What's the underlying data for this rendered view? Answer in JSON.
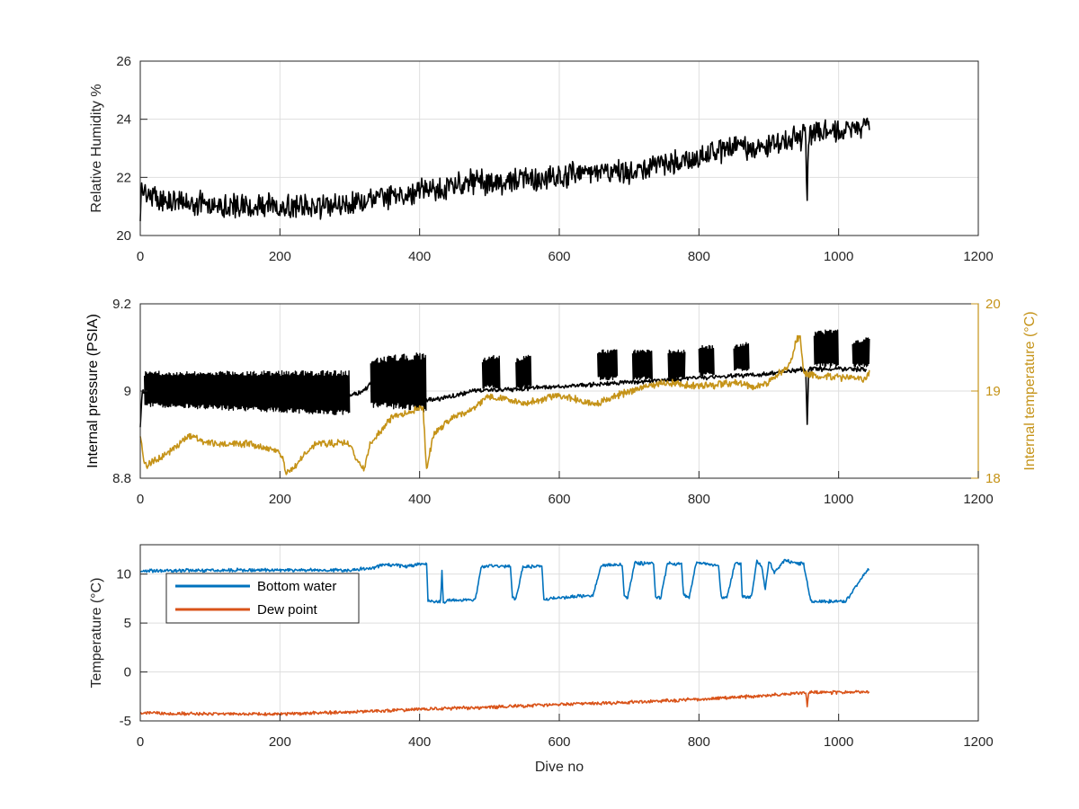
{
  "chart_data": [
    {
      "type": "line",
      "ylabel": "Relative Humidity %",
      "xlim": [
        0,
        1200
      ],
      "ylim": [
        20,
        26
      ],
      "xticks": [
        0,
        200,
        400,
        600,
        800,
        1000,
        1200
      ],
      "yticks": [
        20,
        22,
        24,
        26
      ],
      "grid": true,
      "series": [
        {
          "color": "#000000",
          "noise": 0.5,
          "x": [
            0,
            2,
            6,
            20,
            60,
            100,
            150,
            200,
            250,
            300,
            350,
            400,
            450,
            480,
            500,
            550,
            600,
            650,
            700,
            750,
            800,
            850,
            900,
            950,
            953,
            955,
            957,
            960,
            1000,
            1040,
            1044
          ],
          "y": [
            20.4,
            21.8,
            21.5,
            21.3,
            21.1,
            21.1,
            21.0,
            21.0,
            21.0,
            21.1,
            21.3,
            21.5,
            21.7,
            21.9,
            21.8,
            21.9,
            22.0,
            22.2,
            22.2,
            22.5,
            22.7,
            23.0,
            23.1,
            23.4,
            23.4,
            21.1,
            23.5,
            23.5,
            23.6,
            23.7,
            23.9
          ]
        }
      ]
    },
    {
      "type": "line",
      "ylabel": "Internal pressure (PSIA)",
      "ylabel_right": "Internal temperature (°C)",
      "xlim": [
        0,
        1200
      ],
      "ylim": [
        8.8,
        9.2
      ],
      "ylim_right": [
        18,
        20
      ],
      "xticks": [
        0,
        200,
        400,
        600,
        800,
        1000,
        1200
      ],
      "yticks": [
        8.8,
        9,
        9.2
      ],
      "yticks_right": [
        18,
        19,
        20
      ],
      "grid": true,
      "series": [
        {
          "axis": "left",
          "color": "#000000",
          "noise": 0.006,
          "x": [
            0,
            3,
            6,
            60,
            150,
            250,
            300,
            320,
            330,
            400,
            410,
            415,
            420,
            450,
            480,
            600,
            700,
            800,
            900,
            950,
            953,
            955,
            957,
            960,
            1040
          ],
          "y": [
            8.92,
            9.0,
            9.0,
            9.0,
            9.01,
            9.01,
            8.99,
            9.0,
            9.02,
            9.02,
            8.98,
            8.98,
            8.98,
            8.99,
            9.0,
            9.01,
            9.02,
            9.03,
            9.04,
            9.05,
            9.04,
            8.92,
            9.05,
            9.05,
            9.05
          ]
        },
        {
          "axis": "left",
          "color": "#000000",
          "band": true,
          "x": [
            6,
            300
          ],
          "lo": [
            8.97,
            8.95
          ],
          "hi": [
            9.04,
            9.04
          ]
        },
        {
          "axis": "left",
          "color": "#000000",
          "band": true,
          "x": [
            330,
            410
          ],
          "lo": [
            8.97,
            8.96
          ],
          "hi": [
            9.07,
            9.08
          ]
        },
        {
          "axis": "left",
          "color": "#000000",
          "band": true,
          "x": [
            490,
            515
          ],
          "lo": [
            9.01,
            9.01
          ],
          "hi": [
            9.07,
            9.08
          ]
        },
        {
          "axis": "left",
          "color": "#000000",
          "band": true,
          "x": [
            538,
            560
          ],
          "lo": [
            9.01,
            9.01
          ],
          "hi": [
            9.07,
            9.08
          ]
        },
        {
          "axis": "left",
          "color": "#000000",
          "band": true,
          "x": [
            655,
            683
          ],
          "lo": [
            9.03,
            9.03
          ],
          "hi": [
            9.09,
            9.09
          ]
        },
        {
          "axis": "left",
          "color": "#000000",
          "band": true,
          "x": [
            705,
            733
          ],
          "lo": [
            9.03,
            9.03
          ],
          "hi": [
            9.09,
            9.09
          ]
        },
        {
          "axis": "left",
          "color": "#000000",
          "band": true,
          "x": [
            756,
            780
          ],
          "lo": [
            9.03,
            9.03
          ],
          "hi": [
            9.09,
            9.09
          ]
        },
        {
          "axis": "left",
          "color": "#000000",
          "band": true,
          "x": [
            800,
            822
          ],
          "lo": [
            9.04,
            9.04
          ],
          "hi": [
            9.1,
            9.1
          ]
        },
        {
          "axis": "left",
          "color": "#000000",
          "band": true,
          "x": [
            850,
            872
          ],
          "lo": [
            9.05,
            9.05
          ],
          "hi": [
            9.1,
            9.11
          ]
        },
        {
          "axis": "left",
          "color": "#000000",
          "band": true,
          "x": [
            965,
            1000
          ],
          "lo": [
            9.06,
            9.06
          ],
          "hi": [
            9.13,
            9.14
          ]
        },
        {
          "axis": "left",
          "color": "#000000",
          "band": true,
          "x": [
            1020,
            1044
          ],
          "lo": [
            9.06,
            9.06
          ],
          "hi": [
            9.11,
            9.12
          ]
        },
        {
          "axis": "right",
          "color": "#C59318",
          "noise": 0.05,
          "x": [
            0,
            3,
            5,
            10,
            20,
            50,
            70,
            100,
            150,
            200,
            210,
            250,
            300,
            310,
            320,
            330,
            360,
            400,
            405,
            410,
            420,
            450,
            480,
            500,
            550,
            600,
            650,
            700,
            750,
            800,
            850,
            880,
            900,
            930,
            940,
            945,
            950,
            1000,
            1040,
            1044
          ],
          "y": [
            18.5,
            18.3,
            18.2,
            18.15,
            18.2,
            18.35,
            18.5,
            18.4,
            18.4,
            18.3,
            18.05,
            18.4,
            18.4,
            18.2,
            18.1,
            18.4,
            18.7,
            18.8,
            18.8,
            18.1,
            18.5,
            18.7,
            18.8,
            18.95,
            18.85,
            18.95,
            18.85,
            19.0,
            19.1,
            19.05,
            19.1,
            19.05,
            19.1,
            19.3,
            19.6,
            19.6,
            19.2,
            19.15,
            19.15,
            19.2
          ]
        }
      ]
    },
    {
      "type": "line",
      "ylabel": "Temperature (°C)",
      "xlabel": "Dive no",
      "xlim": [
        0,
        1200
      ],
      "ylim": [
        -5,
        13
      ],
      "xticks": [
        0,
        200,
        400,
        600,
        800,
        1000,
        1200
      ],
      "yticks": [
        -5,
        0,
        5,
        10
      ],
      "grid": true,
      "legend_position": "top-left",
      "series": [
        {
          "name": "Bottom water",
          "color": "#0072BD",
          "noise": 0.2,
          "x": [
            0,
            100,
            110,
            115,
            250,
            300,
            330,
            350,
            380,
            400,
            410,
            412,
            415,
            430,
            432,
            434,
            436,
            440,
            480,
            488,
            498,
            530,
            533,
            538,
            548,
            575,
            578,
            585,
            640,
            648,
            660,
            690,
            693,
            698,
            708,
            735,
            738,
            745,
            755,
            775,
            778,
            786,
            796,
            828,
            832,
            840,
            852,
            860,
            862,
            868,
            875,
            883,
            890,
            895,
            900,
            903,
            908,
            923,
            940,
            950,
            960,
            1000,
            1010,
            1040,
            1044
          ],
          "y": [
            10.3,
            10.4,
            10.4,
            10.4,
            10.4,
            10.4,
            10.6,
            11.0,
            10.8,
            11.0,
            11.1,
            7.3,
            7.2,
            7.2,
            10.3,
            7.2,
            7.1,
            7.3,
            7.4,
            10.7,
            10.8,
            10.8,
            7.6,
            7.4,
            10.8,
            10.8,
            7.4,
            7.5,
            7.8,
            7.8,
            10.9,
            11.0,
            7.8,
            7.6,
            11.1,
            11.1,
            7.7,
            7.5,
            11.1,
            11.0,
            7.8,
            7.6,
            11.1,
            10.9,
            7.6,
            7.6,
            11.2,
            11.0,
            7.8,
            7.6,
            7.7,
            11.3,
            10.8,
            8.4,
            11.3,
            11.0,
            10.2,
            11.4,
            11.1,
            11.0,
            7.2,
            7.2,
            7.2,
            10.3,
            10.6
          ]
        },
        {
          "name": "Dew point",
          "color": "#D95319",
          "noise": 0.2,
          "x": [
            0,
            100,
            200,
            300,
            400,
            500,
            600,
            700,
            800,
            900,
            950,
            953,
            955,
            957,
            1000,
            1044
          ],
          "y": [
            -4.2,
            -4.3,
            -4.3,
            -4.1,
            -3.8,
            -3.6,
            -3.3,
            -3.1,
            -2.8,
            -2.4,
            -2.1,
            -2.1,
            -3.4,
            -2.1,
            -2.1,
            -2.0
          ]
        }
      ]
    }
  ]
}
